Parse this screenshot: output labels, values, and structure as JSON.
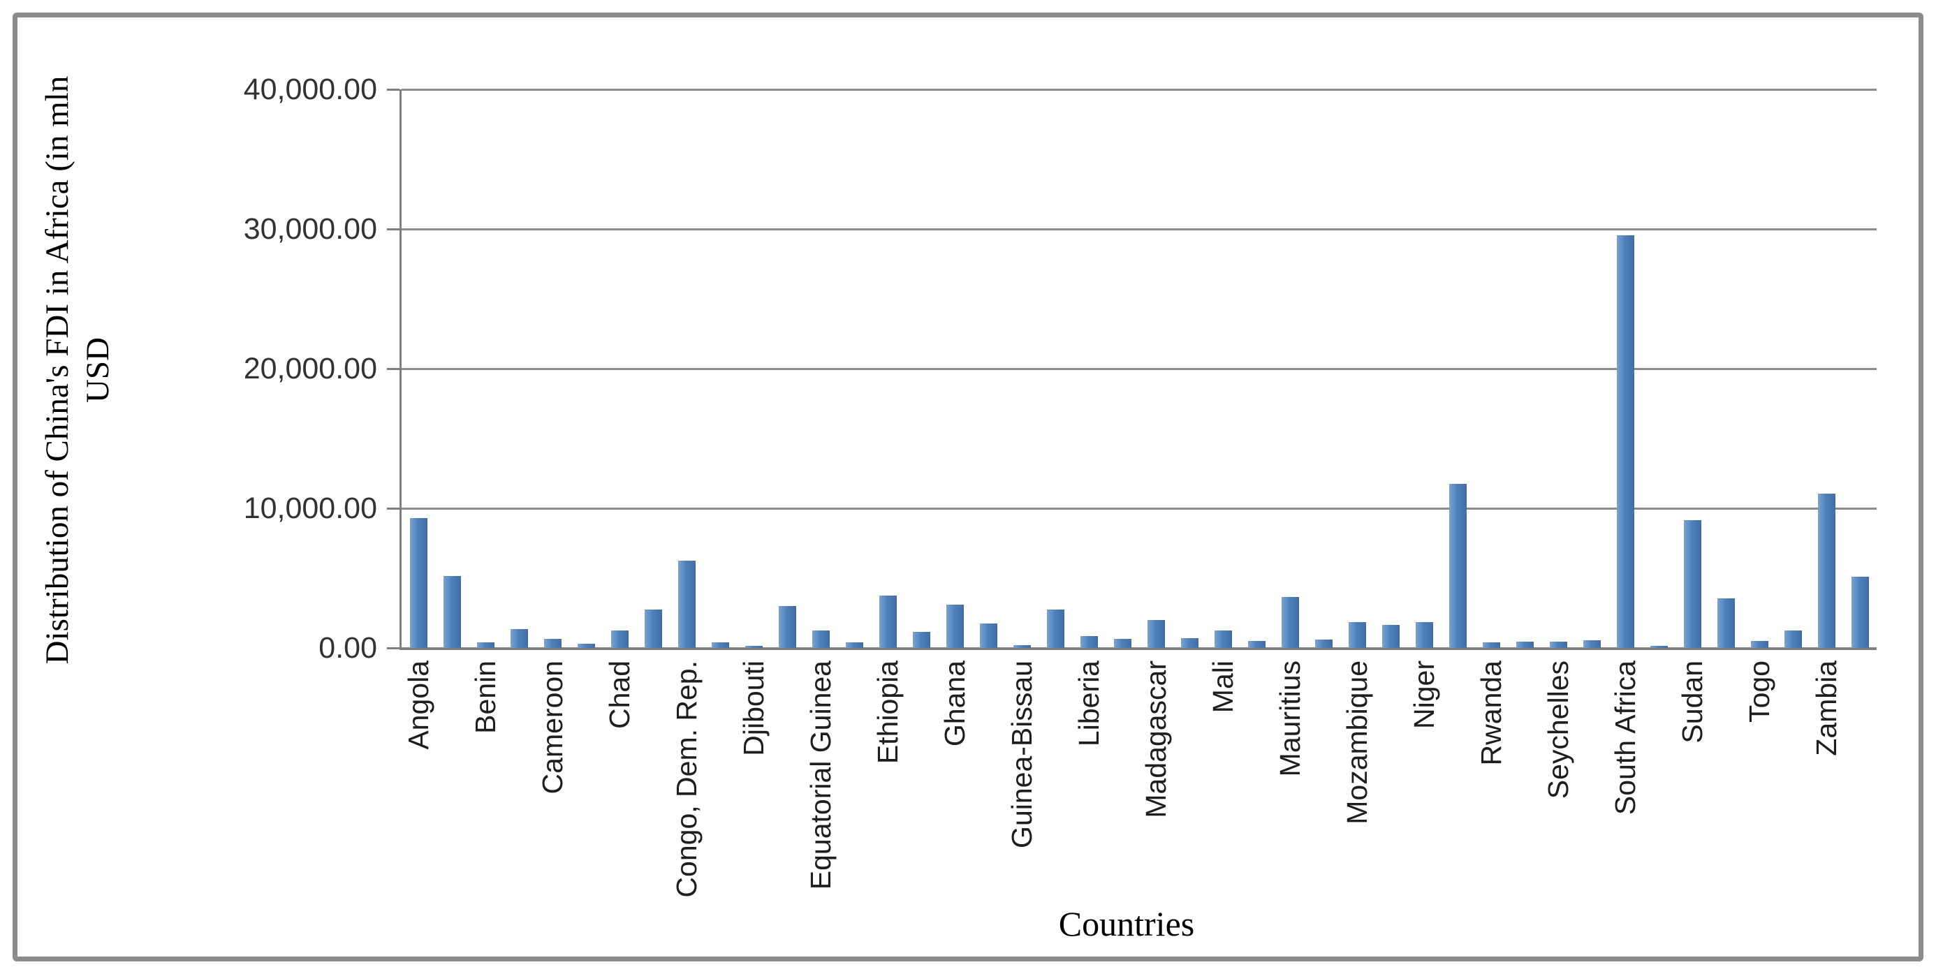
{
  "chart_data": {
    "type": "bar",
    "title": "",
    "xlabel": "Countries",
    "ylabel_line1": "Distribution of China's FDI in Africa (in mln",
    "ylabel_line2": "USD",
    "y_ticks": [
      {
        "label": "40,000.00",
        "value": 40000
      },
      {
        "label": "30,000.00",
        "value": 30000
      },
      {
        "label": "20,000.00",
        "value": 20000
      },
      {
        "label": "10,000.00",
        "value": 10000
      },
      {
        "label": "0.00",
        "value": 0
      }
    ],
    "ylim": [
      0,
      40000
    ],
    "grid": true,
    "legend": "none",
    "bar_color": "#4F81BD",
    "gridline_color": "#8a8a8a",
    "label_interval": 2,
    "note": "44 bars are drawn; the axis shows a label only under every second bar",
    "bars": [
      {
        "label": "Angola",
        "value": 9300
      },
      {
        "label": "",
        "value": 5150
      },
      {
        "label": "Benin",
        "value": 400
      },
      {
        "label": "",
        "value": 1370
      },
      {
        "label": "Cameroon",
        "value": 670
      },
      {
        "label": "",
        "value": 300
      },
      {
        "label": "Chad",
        "value": 1250
      },
      {
        "label": "",
        "value": 2740
      },
      {
        "label": "Congo, Dem. Rep.",
        "value": 6250
      },
      {
        "label": "",
        "value": 400
      },
      {
        "label": "Djibouti",
        "value": 150
      },
      {
        "label": "",
        "value": 3000
      },
      {
        "label": "Equatorial Guinea",
        "value": 1240
      },
      {
        "label": "",
        "value": 390
      },
      {
        "label": "Ethiopia",
        "value": 3740
      },
      {
        "label": "",
        "value": 1150
      },
      {
        "label": "Ghana",
        "value": 3120
      },
      {
        "label": "",
        "value": 1740
      },
      {
        "label": "Guinea-Bissau",
        "value": 220
      },
      {
        "label": "",
        "value": 2750
      },
      {
        "label": "Liberia",
        "value": 850
      },
      {
        "label": "",
        "value": 640
      },
      {
        "label": "Madagascar",
        "value": 2020
      },
      {
        "label": "",
        "value": 700
      },
      {
        "label": "Mali",
        "value": 1250
      },
      {
        "label": "",
        "value": 500
      },
      {
        "label": "Mauritius",
        "value": 3650
      },
      {
        "label": "",
        "value": 620
      },
      {
        "label": "Mozambique",
        "value": 1870
      },
      {
        "label": "",
        "value": 1650
      },
      {
        "label": "Niger",
        "value": 1870
      },
      {
        "label": "",
        "value": 11750
      },
      {
        "label": "Rwanda",
        "value": 390
      },
      {
        "label": "",
        "value": 440
      },
      {
        "label": "Seychelles",
        "value": 450
      },
      {
        "label": "",
        "value": 570
      },
      {
        "label": "South Africa",
        "value": 29550
      },
      {
        "label": "",
        "value": 150
      },
      {
        "label": "Sudan",
        "value": 9150
      },
      {
        "label": "",
        "value": 3570
      },
      {
        "label": "Togo",
        "value": 490
      },
      {
        "label": "",
        "value": 1240
      },
      {
        "label": "Zambia",
        "value": 11040
      },
      {
        "label": "",
        "value": 5100
      }
    ]
  }
}
